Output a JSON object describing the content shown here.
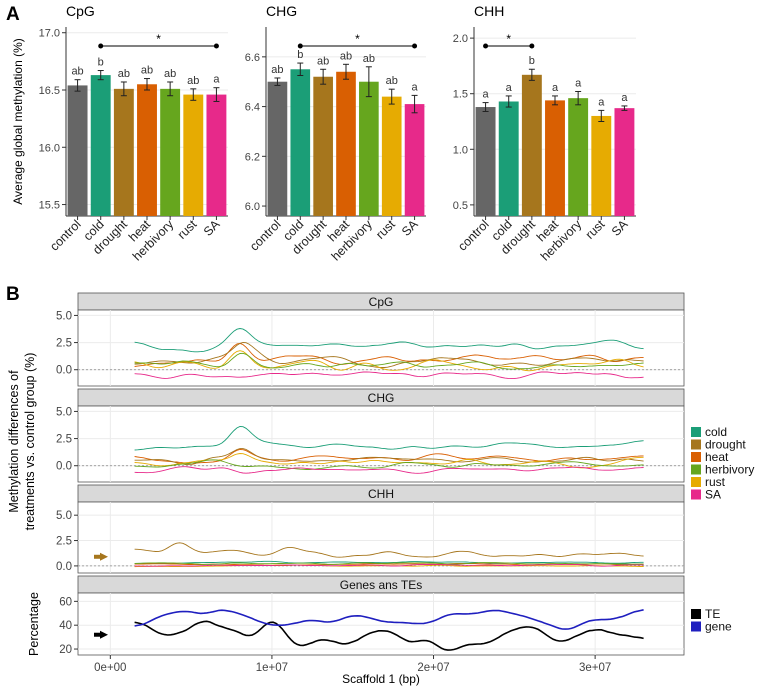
{
  "panel_labels": [
    "A",
    "B"
  ],
  "colors": {
    "control": "#666666",
    "cold": "#1b9e77",
    "drought": "#a6761d",
    "heat": "#d95f02",
    "herbivory": "#66a61e",
    "rust": "#e6ab02",
    "SA": "#e7298a",
    "TE": "#000000",
    "gene": "#1f1fbf",
    "strip": "#d9d9d9",
    "grid": "#ebebeb"
  },
  "chart_data": [
    {
      "type": "bar",
      "id": "A-CpG",
      "title": "CpG",
      "ylabel": "Average global methylation (%)",
      "categories": [
        "control",
        "cold",
        "drought",
        "heat",
        "herbivory",
        "rust",
        "SA"
      ],
      "values": [
        16.54,
        16.63,
        16.51,
        16.55,
        16.51,
        16.46,
        16.46
      ],
      "errors": [
        0.05,
        0.04,
        0.06,
        0.05,
        0.06,
        0.05,
        0.06
      ],
      "letters": [
        "ab",
        "b",
        "ab",
        "ab",
        "ab",
        "ab",
        "a"
      ],
      "ylim": [
        15.4,
        17.05
      ],
      "yticks": [
        "15.5",
        "16.0",
        "16.5",
        "17.0"
      ],
      "significance": {
        "from": "cold",
        "to": "SA",
        "label": "*"
      }
    },
    {
      "type": "bar",
      "id": "A-CHG",
      "title": "CHG",
      "categories": [
        "control",
        "cold",
        "drought",
        "heat",
        "herbivory",
        "rust",
        "SA"
      ],
      "values": [
        6.5,
        6.55,
        6.52,
        6.54,
        6.5,
        6.44,
        6.41
      ],
      "errors": [
        0.015,
        0.025,
        0.03,
        0.03,
        0.06,
        0.03,
        0.035
      ],
      "letters": [
        "ab",
        "b",
        "ab",
        "ab",
        "ab",
        "ab",
        "a"
      ],
      "ylim": [
        5.96,
        6.72
      ],
      "yticks": [
        "6.0",
        "6.2",
        "6.4",
        "6.6"
      ],
      "significance": {
        "from": "cold",
        "to": "SA",
        "label": "*"
      }
    },
    {
      "type": "bar",
      "id": "A-CHH",
      "title": "CHH",
      "categories": [
        "control",
        "cold",
        "drought",
        "heat",
        "herbivory",
        "rust",
        "SA"
      ],
      "values": [
        1.38,
        1.43,
        1.67,
        1.44,
        1.46,
        1.3,
        1.37
      ],
      "errors": [
        0.04,
        0.05,
        0.05,
        0.04,
        0.06,
        0.05,
        0.02
      ],
      "letters": [
        "a",
        "a",
        "b",
        "a",
        "a",
        "a",
        "a"
      ],
      "ylim": [
        0.4,
        2.1
      ],
      "yticks": [
        "0.5",
        "1.0",
        "1.5",
        "2.0"
      ],
      "significance": {
        "from": "control",
        "to": "drought",
        "label": "*"
      }
    },
    {
      "type": "line",
      "id": "B",
      "ylabel": "Methylation differences of treatments vs. control group (%)",
      "xlabel": "Scaffold 1 (bp)",
      "xlim": [
        -2000000,
        35500000
      ],
      "xticks": [
        0,
        10000000,
        20000000,
        30000000
      ],
      "xtick_labels": [
        "0e+00",
        "1e+07",
        "2e+07",
        "3e+07"
      ],
      "x_range": [
        1500000,
        33000000
      ],
      "facets": [
        {
          "title": "CpG",
          "ylim": [
            -1.5,
            5.5
          ],
          "yticks": [
            "0.0",
            "2.5",
            "5.0"
          ],
          "series": [
            {
              "name": "cold",
              "base": 2.2,
              "amp": 0.55,
              "bumps": [
                [
                  8000000,
                  1.6
                ]
              ],
              "seed": 3
            },
            {
              "name": "heat",
              "base": 0.9,
              "amp": 0.6,
              "bumps": [
                [
                  8000000,
                  1.8
                ]
              ],
              "seed": 7
            },
            {
              "name": "drought",
              "base": 0.8,
              "amp": 0.6,
              "bumps": [
                [
                  8200000,
                  1.6
                ]
              ],
              "seed": 11
            },
            {
              "name": "rust",
              "base": 0.5,
              "amp": 0.6,
              "bumps": [
                [
                  8000000,
                  1.5
                ]
              ],
              "seed": 13
            },
            {
              "name": "herbivory",
              "base": 0.3,
              "amp": 0.5,
              "bumps": [
                [
                  8100000,
                  1.2
                ]
              ],
              "seed": 17
            },
            {
              "name": "SA",
              "base": -0.55,
              "amp": 0.35,
              "bumps": [],
              "seed": 19
            }
          ]
        },
        {
          "title": "CHG",
          "ylim": [
            -1.5,
            5.5
          ],
          "yticks": [
            "0.0",
            "2.5",
            "5.0"
          ],
          "series": [
            {
              "name": "cold",
              "base": 1.8,
              "amp": 0.5,
              "bumps": [
                [
                  8000000,
                  1.6
                ]
              ],
              "seed": 23
            },
            {
              "name": "heat",
              "base": 0.6,
              "amp": 0.5,
              "bumps": [
                [
                  8000000,
                  1.2
                ]
              ],
              "seed": 29
            },
            {
              "name": "drought",
              "base": 0.6,
              "amp": 0.5,
              "bumps": [
                [
                  8100000,
                  1.2
                ]
              ],
              "seed": 31
            },
            {
              "name": "rust",
              "base": 0.3,
              "amp": 0.5,
              "bumps": [
                [
                  8000000,
                  1.0
                ]
              ],
              "seed": 37
            },
            {
              "name": "herbivory",
              "base": 0.1,
              "amp": 0.45,
              "bumps": [],
              "seed": 41
            },
            {
              "name": "SA",
              "base": -0.35,
              "amp": 0.35,
              "bumps": [],
              "seed": 43
            }
          ]
        },
        {
          "title": "CHH",
          "ylim": [
            -0.7,
            6.3
          ],
          "yticks": [
            "0.0",
            "2.5",
            "5.0"
          ],
          "arrow_at": 0.9,
          "arrow_color": "#a6761d",
          "series": [
            {
              "name": "drought",
              "base": 1.2,
              "amp": 0.45,
              "bumps": [
                [
                  4200000,
                  1.0
                ],
                [
                  11000000,
                  0.6
                ]
              ],
              "seed": 47
            },
            {
              "name": "cold",
              "base": 0.35,
              "amp": 0.12,
              "bumps": [],
              "seed": 53
            },
            {
              "name": "heat",
              "base": 0.15,
              "amp": 0.12,
              "bumps": [],
              "seed": 59
            },
            {
              "name": "herbivory",
              "base": 0.25,
              "amp": 0.1,
              "bumps": [],
              "seed": 61
            },
            {
              "name": "rust",
              "base": 0.0,
              "amp": 0.1,
              "bumps": [],
              "seed": 67
            },
            {
              "name": "SA",
              "base": 0.05,
              "amp": 0.1,
              "bumps": [],
              "seed": 71
            }
          ]
        }
      ],
      "genes_panel": {
        "title": "Genes ans TEs",
        "ylabel": "Percentage",
        "ylim": [
          15,
          67
        ],
        "yticks": [
          "20",
          "40",
          "60"
        ],
        "arrow_at": 32,
        "arrow_color": "#000000",
        "series": [
          {
            "name": "TE",
            "base": 35,
            "amp": 11,
            "trend": -8,
            "seed": 79
          },
          {
            "name": "gene",
            "base": 45,
            "amp": 10,
            "trend": 2,
            "seed": 83
          }
        ]
      },
      "legend_main": [
        "cold",
        "drought",
        "heat",
        "herbivory",
        "rust",
        "SA"
      ],
      "legend_genes": [
        "TE",
        "gene"
      ]
    }
  ]
}
